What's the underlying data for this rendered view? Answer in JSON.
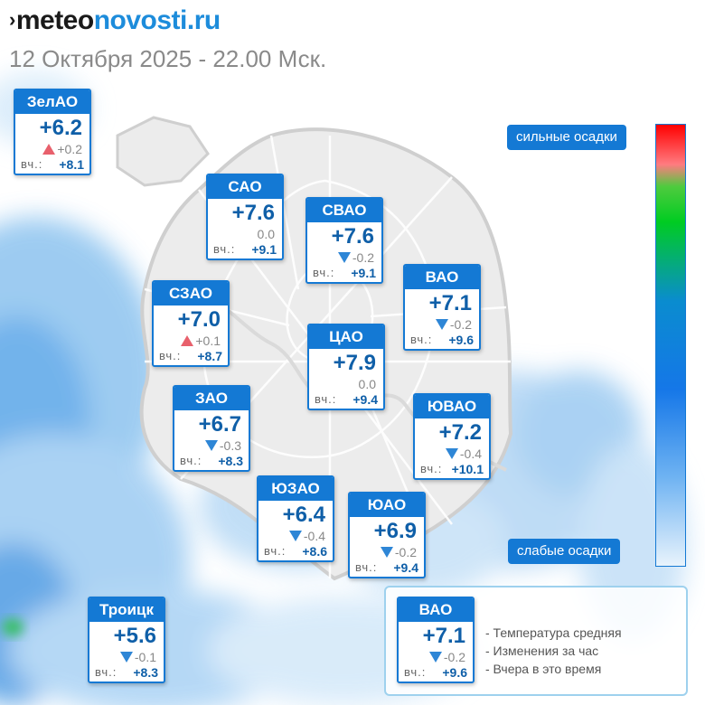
{
  "header": {
    "logo_mark": "›",
    "logo_part1": "meteo",
    "logo_part2": "novosti.ru",
    "datetime": "12 Октября 2025 - 22.00 Мск."
  },
  "yesterday_prefix": "вч.:",
  "districts": [
    {
      "id": "zelao",
      "name": "ЗелАО",
      "temp": "+6.2",
      "change": "+0.2",
      "trend": "up",
      "yesterday": "+8.1"
    },
    {
      "id": "sao",
      "name": "САО",
      "temp": "+7.6",
      "change": "0.0",
      "trend": "none",
      "yesterday": "+9.1"
    },
    {
      "id": "svao",
      "name": "СВАО",
      "temp": "+7.6",
      "change": "-0.2",
      "trend": "down",
      "yesterday": "+9.1"
    },
    {
      "id": "szao",
      "name": "СЗАО",
      "temp": "+7.0",
      "change": "+0.1",
      "trend": "up",
      "yesterday": "+8.7"
    },
    {
      "id": "vao",
      "name": "ВАО",
      "temp": "+7.1",
      "change": "-0.2",
      "trend": "down",
      "yesterday": "+9.6"
    },
    {
      "id": "cao",
      "name": "ЦАО",
      "temp": "+7.9",
      "change": "0.0",
      "trend": "none",
      "yesterday": "+9.4"
    },
    {
      "id": "zao",
      "name": "ЗАО",
      "temp": "+6.7",
      "change": "-0.3",
      "trend": "down",
      "yesterday": "+8.3"
    },
    {
      "id": "yuvao",
      "name": "ЮВАО",
      "temp": "+7.2",
      "change": "-0.4",
      "trend": "down",
      "yesterday": "+10.1"
    },
    {
      "id": "yuzao",
      "name": "ЮЗАО",
      "temp": "+6.4",
      "change": "-0.4",
      "trend": "down",
      "yesterday": "+8.6"
    },
    {
      "id": "yuao",
      "name": "ЮАО",
      "temp": "+6.9",
      "change": "-0.2",
      "trend": "down",
      "yesterday": "+9.4"
    },
    {
      "id": "troitsk",
      "name": "Троицк",
      "temp": "+5.6",
      "change": "-0.1",
      "trend": "down",
      "yesterday": "+8.3"
    }
  ],
  "precipitation_scale": {
    "high_label": "сильные осадки",
    "low_label": "слабые осадки",
    "colors": [
      "#ff0000",
      "#ff7b80",
      "#00cc22",
      "#1577e8",
      "#e8f3fc"
    ]
  },
  "legend": {
    "sample": {
      "name": "ВАО",
      "temp": "+7.1",
      "change": "-0.2",
      "trend": "down",
      "yesterday": "+9.6"
    },
    "notes": [
      "- Температура средняя",
      "- Изменения за час",
      "- Вчера в это время"
    ]
  },
  "colors": {
    "accent": "#1479d4",
    "temp_text": "#0f5fa8",
    "trend_up": "#e8606c",
    "trend_down": "#2e86d6"
  }
}
